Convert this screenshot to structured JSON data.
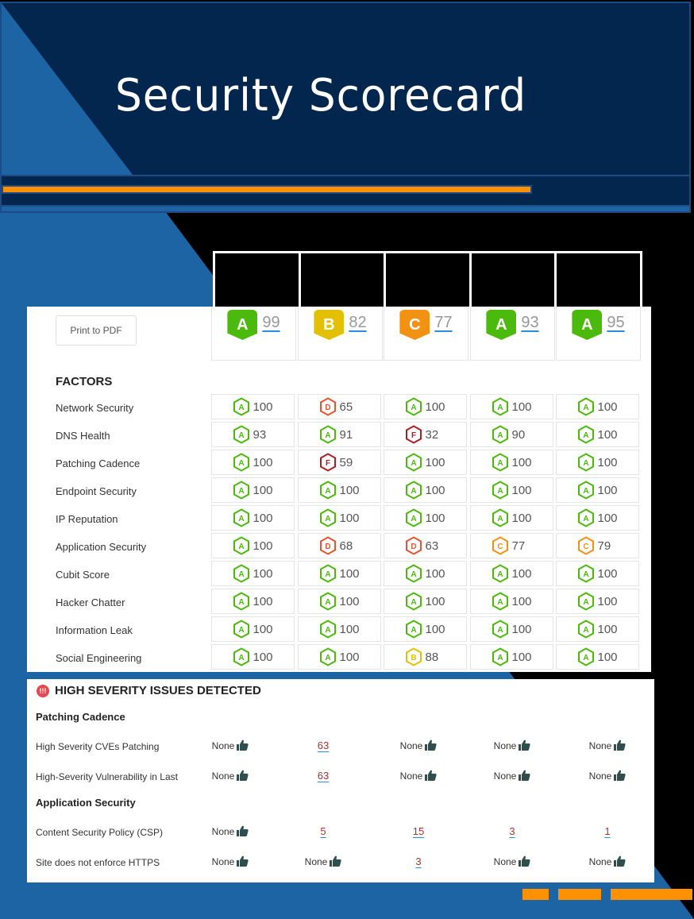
{
  "header": {
    "title": "Security Scorecard"
  },
  "toolbar": {
    "print_label": "Print to PDF"
  },
  "colors": {
    "A": "#4cba0c",
    "B": "#e3c004",
    "C": "#f39212",
    "D": "#e8542f",
    "F": "#b01e23",
    "navy": "#03264f",
    "blue": "#1c64a4",
    "orange": "#ff9000"
  },
  "overall": [
    {
      "grade": "A",
      "score": "99"
    },
    {
      "grade": "B",
      "score": "82"
    },
    {
      "grade": "C",
      "score": "77"
    },
    {
      "grade": "A",
      "score": "93"
    },
    {
      "grade": "A",
      "score": "95"
    }
  ],
  "factors": {
    "title": "FACTORS",
    "rows": [
      {
        "label": "Network Security",
        "cells": [
          [
            "A",
            "100"
          ],
          [
            "D",
            "65"
          ],
          [
            "A",
            "100"
          ],
          [
            "A",
            "100"
          ],
          [
            "A",
            "100"
          ]
        ]
      },
      {
        "label": "DNS Health",
        "cells": [
          [
            "A",
            "93"
          ],
          [
            "A",
            "91"
          ],
          [
            "F",
            "32"
          ],
          [
            "A",
            "90"
          ],
          [
            "A",
            "100"
          ]
        ]
      },
      {
        "label": "Patching Cadence",
        "cells": [
          [
            "A",
            "100"
          ],
          [
            "F",
            "59"
          ],
          [
            "A",
            "100"
          ],
          [
            "A",
            "100"
          ],
          [
            "A",
            "100"
          ]
        ]
      },
      {
        "label": "Endpoint Security",
        "cells": [
          [
            "A",
            "100"
          ],
          [
            "A",
            "100"
          ],
          [
            "A",
            "100"
          ],
          [
            "A",
            "100"
          ],
          [
            "A",
            "100"
          ]
        ]
      },
      {
        "label": "IP Reputation",
        "cells": [
          [
            "A",
            "100"
          ],
          [
            "A",
            "100"
          ],
          [
            "A",
            "100"
          ],
          [
            "A",
            "100"
          ],
          [
            "A",
            "100"
          ]
        ]
      },
      {
        "label": "Application Security",
        "cells": [
          [
            "A",
            "100"
          ],
          [
            "D",
            "68"
          ],
          [
            "D",
            "63"
          ],
          [
            "C",
            "77"
          ],
          [
            "C",
            "79"
          ]
        ]
      },
      {
        "label": "Cubit Score",
        "cells": [
          [
            "A",
            "100"
          ],
          [
            "A",
            "100"
          ],
          [
            "A",
            "100"
          ],
          [
            "A",
            "100"
          ],
          [
            "A",
            "100"
          ]
        ]
      },
      {
        "label": "Hacker Chatter",
        "cells": [
          [
            "A",
            "100"
          ],
          [
            "A",
            "100"
          ],
          [
            "A",
            "100"
          ],
          [
            "A",
            "100"
          ],
          [
            "A",
            "100"
          ]
        ]
      },
      {
        "label": "Information Leak",
        "cells": [
          [
            "A",
            "100"
          ],
          [
            "A",
            "100"
          ],
          [
            "A",
            "100"
          ],
          [
            "A",
            "100"
          ],
          [
            "A",
            "100"
          ]
        ]
      },
      {
        "label": "Social Engineering",
        "cells": [
          [
            "A",
            "100"
          ],
          [
            "A",
            "100"
          ],
          [
            "B",
            "88"
          ],
          [
            "A",
            "100"
          ],
          [
            "A",
            "100"
          ]
        ]
      }
    ]
  },
  "issues": {
    "title": "HIGH SEVERITY ISSUES DETECTED",
    "sections": [
      {
        "title": "Patching Cadence",
        "rows": [
          {
            "label": "High Severity CVEs Patching",
            "values": [
              "None",
              "63",
              "None",
              "None",
              "None"
            ]
          },
          {
            "label": "High-Severity Vulnerability in Last",
            "values": [
              "None",
              "63",
              "None",
              "None",
              "None"
            ]
          }
        ]
      },
      {
        "title": "Application Security",
        "rows": [
          {
            "label": "Content Security Policy (CSP)",
            "values": [
              "None",
              "5",
              "15",
              "3",
              "1"
            ]
          },
          {
            "label": "Site does not enforce HTTPS",
            "values": [
              "None",
              "None",
              "3",
              "None",
              "None"
            ]
          }
        ]
      }
    ]
  }
}
